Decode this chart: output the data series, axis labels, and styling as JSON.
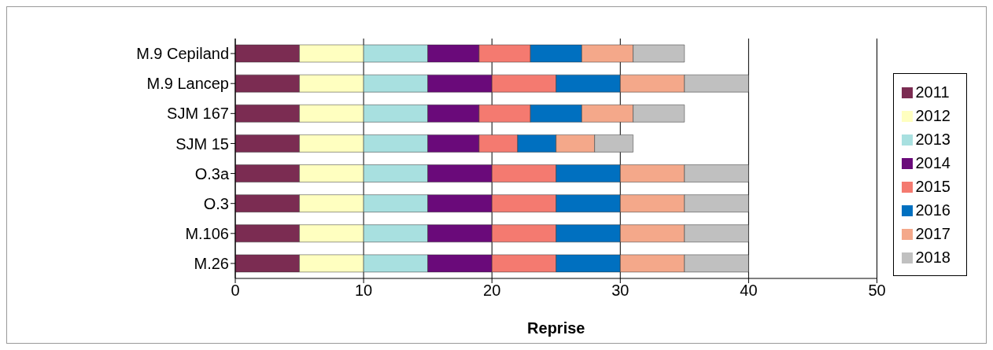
{
  "chart_data": {
    "type": "bar",
    "orientation": "horizontal",
    "stacked": true,
    "xlabel": "Reprise",
    "categories": [
      "M.9 Cepiland",
      "M.9 Lancep",
      "SJM 167",
      "SJM 15",
      "O.3a",
      "O.3",
      "M.106",
      "M.26"
    ],
    "series": [
      {
        "name": "2011",
        "color": "#7b2c52",
        "values": [
          5,
          5,
          5,
          5,
          5,
          5,
          5,
          5
        ]
      },
      {
        "name": "2012",
        "color": "#ffffc0",
        "values": [
          5,
          5,
          5,
          5,
          5,
          5,
          5,
          5
        ]
      },
      {
        "name": "2013",
        "color": "#a8e0e0",
        "values": [
          5,
          5,
          5,
          5,
          5,
          5,
          5,
          5
        ]
      },
      {
        "name": "2014",
        "color": "#6a0a7a",
        "values": [
          4,
          5,
          4,
          4,
          5,
          5,
          5,
          5
        ]
      },
      {
        "name": "2015",
        "color": "#f47a70",
        "values": [
          4,
          5,
          4,
          3,
          5,
          5,
          5,
          5
        ]
      },
      {
        "name": "2016",
        "color": "#0070c0",
        "values": [
          4,
          5,
          4,
          3,
          5,
          5,
          5,
          5
        ]
      },
      {
        "name": "2017",
        "color": "#f4a88a",
        "values": [
          4,
          5,
          4,
          3,
          5,
          5,
          5,
          5
        ]
      },
      {
        "name": "2018",
        "color": "#c0c0c0",
        "values": [
          4,
          5,
          4,
          3,
          5,
          5,
          5,
          5
        ]
      }
    ],
    "xlim": [
      0,
      50
    ],
    "xticks": [
      0,
      10,
      20,
      30,
      40,
      50
    ],
    "grid": "x",
    "legend": "right"
  }
}
